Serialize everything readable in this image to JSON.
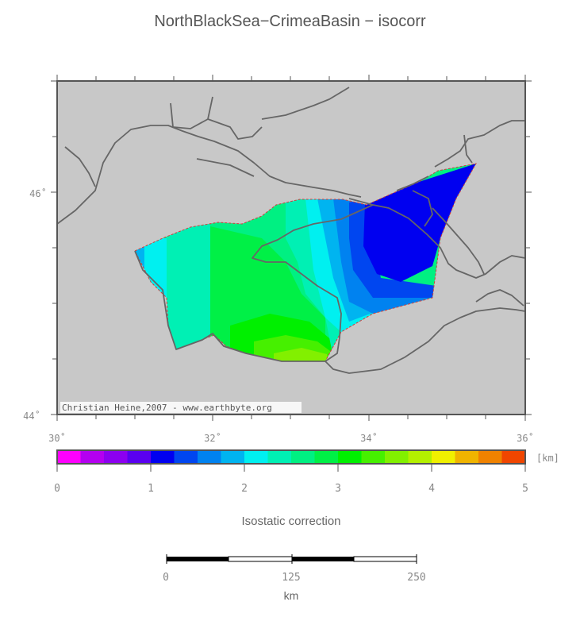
{
  "title": "NorthBlackSea−CrimeaBasin − isocorr",
  "map": {
    "credit": "Christian Heine,2007 - www.earthbyte.org",
    "background_color": "#c8c8c8",
    "lat_labels": [
      "46˚",
      "44˚"
    ],
    "lon_labels": [
      "30˚",
      "32˚",
      "34˚",
      "36˚"
    ],
    "extent": {
      "lon": [
        30,
        36
      ],
      "lat": [
        44,
        47
      ]
    }
  },
  "colorbar": {
    "unit": "[km]",
    "tick_labels": [
      "0",
      "1",
      "2",
      "3",
      "4",
      "5"
    ],
    "range": [
      0,
      5
    ],
    "colors": [
      "#ff00ff",
      "#b400f0",
      "#8c00f0",
      "#5a00f0",
      "#0000f0",
      "#0046f0",
      "#0082f0",
      "#00b4f0",
      "#00f0f0",
      "#00f0b4",
      "#00f082",
      "#00f046",
      "#00f000",
      "#46f000",
      "#82f000",
      "#b4f000",
      "#f0f000",
      "#f0b400",
      "#f08200",
      "#f04600"
    ],
    "label": "Isostatic correction"
  },
  "scalebar": {
    "tick_labels": [
      "0",
      "125",
      "250"
    ],
    "unit": "km"
  }
}
